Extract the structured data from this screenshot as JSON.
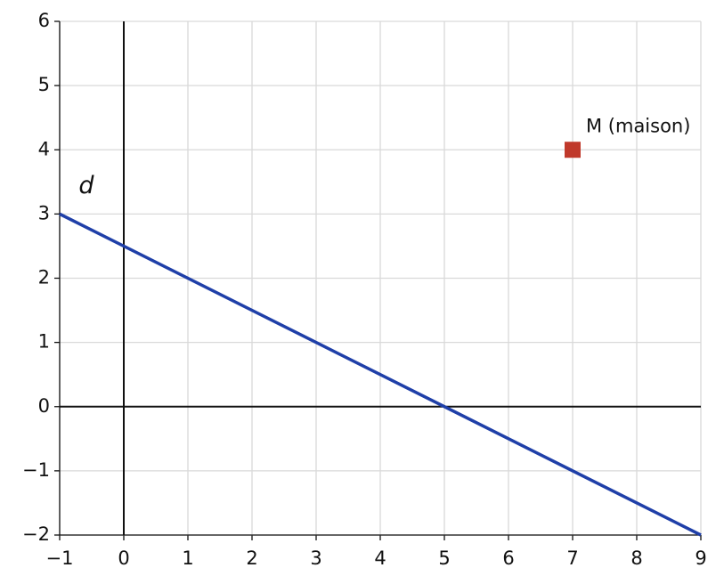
{
  "chart_data": {
    "type": "line",
    "x": [
      -1,
      9
    ],
    "series": [
      {
        "name": "d",
        "color": "#1f3fa8",
        "values": [
          3,
          -2
        ]
      }
    ],
    "points": [
      {
        "label": "M (maison)",
        "x": 7,
        "y": 4,
        "color": "#c0392b"
      }
    ],
    "xlim": [
      -1,
      9
    ],
    "ylim": [
      -2,
      6
    ],
    "xticks": [
      {
        "value": -1,
        "label": "−1"
      },
      0,
      1,
      2,
      3,
      4,
      5,
      6,
      7,
      8,
      9
    ],
    "yticks": [
      {
        "value": -2,
        "label": "−2"
      },
      {
        "value": -1,
        "label": "−1"
      },
      0,
      1,
      2,
      3,
      4,
      5,
      6
    ],
    "grid": true
  }
}
